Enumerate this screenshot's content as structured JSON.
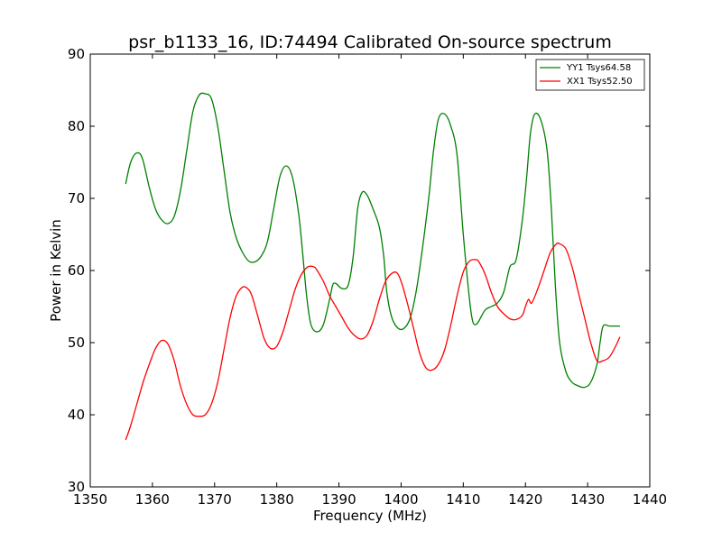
{
  "chart_data": {
    "type": "line",
    "title": "psr_b1133_16, ID:74494 Calibrated On-source spectrum",
    "xlabel": "Frequency (MHz)",
    "ylabel": "Power in Kelvin",
    "xlim": [
      1350,
      1440
    ],
    "ylim": [
      30,
      90
    ],
    "xticks": [
      1350,
      1360,
      1370,
      1380,
      1390,
      1400,
      1410,
      1420,
      1430,
      1440
    ],
    "yticks": [
      30,
      40,
      50,
      60,
      70,
      80,
      90
    ],
    "grid": false,
    "legend_position": "top-right",
    "series": [
      {
        "name": "YY1 Tsys64.58",
        "color": "#008000",
        "x": [
          1355.7,
          1356.5,
          1357.5,
          1358.4,
          1359.5,
          1360.5,
          1361.5,
          1362.5,
          1363.5,
          1364.5,
          1365.5,
          1366.5,
          1367.5,
          1368.5,
          1369.5,
          1370.5,
          1371.5,
          1372.5,
          1373.5,
          1374.5,
          1375.5,
          1376.5,
          1377.5,
          1378.5,
          1379.5,
          1380.5,
          1381.5,
          1382.5,
          1383.5,
          1384.1,
          1384.8,
          1385.5,
          1386.5,
          1387.5,
          1388.5,
          1389.0,
          1389.5,
          1390.5,
          1391.5,
          1392.3,
          1393.0,
          1393.7,
          1394.5,
          1395.5,
          1396.5,
          1397.2,
          1397.7,
          1398.5,
          1399.5,
          1400.5,
          1401.5,
          1402.5,
          1403.5,
          1404.5,
          1405.2,
          1406.0,
          1407.0,
          1408.0,
          1409.0,
          1410.0,
          1411.0,
          1411.5,
          1412.0,
          1412.5,
          1413.5,
          1414.5,
          1415.5,
          1416.5,
          1417.5,
          1418.5,
          1419.5,
          1420.2,
          1420.8,
          1421.5,
          1422.5,
          1423.5,
          1424.2,
          1424.8,
          1425.5,
          1426.5,
          1427.5,
          1428.5,
          1429.5,
          1430.5,
          1431.5,
          1432.0,
          1432.5,
          1433.5,
          1434.5,
          1435.2
        ],
        "y": [
          72.0,
          75.0,
          76.3,
          75.5,
          71.5,
          68.5,
          67.0,
          66.5,
          67.5,
          71.0,
          76.5,
          82.0,
          84.3,
          84.5,
          83.8,
          80.0,
          74.0,
          68.0,
          64.5,
          62.5,
          61.3,
          61.2,
          62.0,
          64.0,
          68.5,
          73.0,
          74.5,
          73.0,
          68.0,
          63.0,
          56.5,
          52.5,
          51.5,
          52.5,
          56.0,
          58.0,
          58.2,
          57.5,
          58.0,
          62.0,
          68.5,
          70.8,
          70.5,
          68.5,
          66.0,
          62.0,
          57.0,
          53.5,
          52.0,
          52.0,
          53.5,
          57.5,
          63.5,
          70.5,
          76.5,
          81.0,
          81.7,
          80.0,
          76.0,
          65.0,
          56.0,
          53.0,
          52.5,
          53.0,
          54.5,
          55.0,
          55.5,
          57.0,
          60.5,
          61.5,
          67.0,
          73.0,
          79.0,
          81.7,
          80.8,
          76.5,
          68.0,
          58.0,
          50.0,
          46.0,
          44.5,
          44.0,
          43.8,
          44.5,
          47.0,
          50.0,
          52.3,
          52.3,
          52.3,
          52.3
        ],
        "note_x_sorted": true
      },
      {
        "name": "XX1 Tsys52.50",
        "color": "#ff0000",
        "x": [
          1355.7,
          1356.5,
          1357.5,
          1358.5,
          1359.5,
          1360.5,
          1361.5,
          1362.5,
          1363.5,
          1364.5,
          1365.5,
          1366.5,
          1367.5,
          1368.5,
          1369.5,
          1370.5,
          1371.5,
          1372.5,
          1373.5,
          1374.5,
          1375.3,
          1376.0,
          1377.0,
          1378.0,
          1379.0,
          1380.0,
          1381.0,
          1382.0,
          1383.0,
          1384.0,
          1385.0,
          1386.0,
          1386.5,
          1387.5,
          1388.5,
          1389.5,
          1390.5,
          1391.5,
          1392.5,
          1393.5,
          1394.5,
          1395.5,
          1396.5,
          1397.5,
          1398.5,
          1399.3,
          1400.0,
          1401.0,
          1402.0,
          1403.0,
          1404.0,
          1405.0,
          1406.0,
          1407.0,
          1408.0,
          1409.0,
          1410.0,
          1411.0,
          1412.0,
          1412.5,
          1413.5,
          1414.5,
          1415.5,
          1416.5,
          1417.5,
          1418.5,
          1419.5,
          1420.0,
          1420.5,
          1421.0,
          1422.0,
          1423.0,
          1424.0,
          1425.0,
          1425.5,
          1426.5,
          1427.5,
          1428.5,
          1429.5,
          1430.5,
          1431.5,
          1432.5,
          1433.5,
          1434.5,
          1435.2
        ],
        "y": [
          36.5,
          38.5,
          41.5,
          44.5,
          47.0,
          49.2,
          50.3,
          49.8,
          47.5,
          44.0,
          41.5,
          40.0,
          39.8,
          40.0,
          41.5,
          44.5,
          49.0,
          53.5,
          56.5,
          57.7,
          57.5,
          56.5,
          53.5,
          50.5,
          49.2,
          49.5,
          51.5,
          54.5,
          57.5,
          59.5,
          60.5,
          60.5,
          60.0,
          58.5,
          56.5,
          55.0,
          53.5,
          52.0,
          51.0,
          50.5,
          51.0,
          53.0,
          56.0,
          58.5,
          59.6,
          59.7,
          58.5,
          55.5,
          52.0,
          48.5,
          46.5,
          46.2,
          47.0,
          49.0,
          52.5,
          56.5,
          59.8,
          61.3,
          61.5,
          61.2,
          59.5,
          57.0,
          55.0,
          54.0,
          53.3,
          53.2,
          53.8,
          55.0,
          56.0,
          55.5,
          57.5,
          60.0,
          62.5,
          63.7,
          63.7,
          63.0,
          60.5,
          57.0,
          53.5,
          50.0,
          47.5,
          47.5,
          48.0,
          49.5,
          50.8
        ],
        "note_x_sorted": true
      }
    ]
  }
}
